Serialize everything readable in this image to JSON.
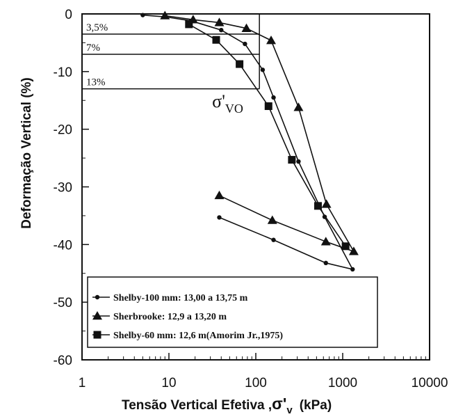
{
  "chart_data": {
    "type": "line",
    "title": "",
    "xlabel": "Tensão Vertical Efetiva ,σ'v (kPa)",
    "xlabel_main": "Tensão Vertical Efetiva ,",
    "xlabel_sym": "σ'",
    "xlabel_sub": "v",
    "xlabel_unit": "(kPa)",
    "ylabel": "Deformação Vertical (%)",
    "xscale": "log",
    "xlim": [
      1,
      10000
    ],
    "ylim": [
      -60,
      0
    ],
    "xticks": [
      1,
      10,
      100,
      1000,
      10000
    ],
    "xtick_labels": [
      "1",
      "10",
      "100",
      "1000",
      "10000"
    ],
    "yticks": [
      0,
      -10,
      -20,
      -30,
      -40,
      -50,
      -60
    ],
    "ytick_labels": [
      "0",
      "-10",
      "-20",
      "-30",
      "-40",
      "-50",
      "-60"
    ],
    "grid": false,
    "legend_position": "bottom-left",
    "series": [
      {
        "name": "Shelby-100 mm: 13,00 a 13,75 m",
        "marker": "circle",
        "x": [
          5,
          9,
          18,
          40,
          75,
          120,
          160,
          310,
          620,
          1300,
          640,
          160,
          38
        ],
        "y": [
          -0.2,
          -0.5,
          -1.2,
          -2.8,
          -5.2,
          -9.7,
          -14.5,
          -25.6,
          -35.2,
          -44.3,
          -43.2,
          -39.2,
          -35.3
        ]
      },
      {
        "name": "Sherbrooke: 12,9 a 13,20 m",
        "marker": "triangle",
        "x": [
          9,
          19,
          38,
          78,
          150,
          310,
          650,
          1340,
          640,
          155,
          38
        ],
        "y": [
          -0.3,
          -1.0,
          -1.5,
          -2.5,
          -4.6,
          -16.2,
          -33.0,
          -41.2,
          -39.5,
          -35.8,
          -31.5
        ]
      },
      {
        "name": "Shelby-60 mm: 12,6 m(Amorim Jr.,1975)",
        "marker": "square",
        "x": [
          17,
          35,
          65,
          140,
          260,
          520,
          1080
        ],
        "y": [
          -1.8,
          -4.5,
          -8.7,
          -16.0,
          -25.3,
          -33.3,
          -40.3
        ]
      }
    ],
    "annotations": {
      "strain_levels": [
        {
          "label": "3,5%",
          "y": -3.5
        },
        {
          "label": "7%",
          "y": -7
        },
        {
          "label": "13%",
          "y": -13
        }
      ],
      "sigma_vo": {
        "x": 110,
        "label_main": "σ'",
        "label_sub": "VO"
      }
    }
  }
}
